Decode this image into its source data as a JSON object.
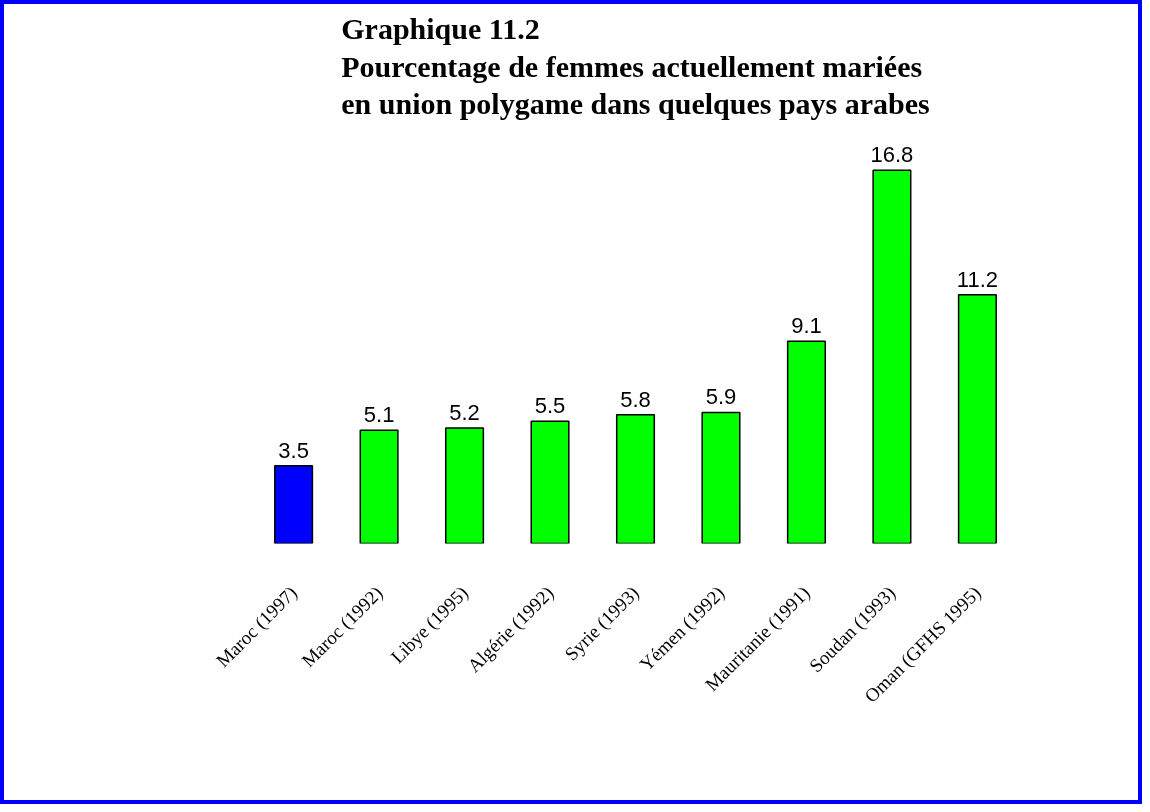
{
  "chart_data": {
    "type": "bar",
    "title": "Graphique 11.2\nPourcentage de femmes actuellement mariées\nen union polygame dans quelques pays arabes",
    "categories": [
      "Maroc (1997)",
      "Maroc (1992)",
      "Libye (1995)",
      "Algérie (1992)",
      "Syrie (1993)",
      "Yémen (1992)",
      "Mauritanie (1991)",
      "Soudan (1993)",
      "Oman (GFHS 1995)"
    ],
    "values": [
      3.5,
      5.1,
      5.2,
      5.5,
      5.8,
      5.9,
      9.1,
      16.8,
      11.2
    ],
    "colors": [
      "#0000ff",
      "#00ff00",
      "#00ff00",
      "#00ff00",
      "#00ff00",
      "#00ff00",
      "#00ff00",
      "#00ff00",
      "#00ff00"
    ],
    "data_labels": true,
    "grid": false
  }
}
